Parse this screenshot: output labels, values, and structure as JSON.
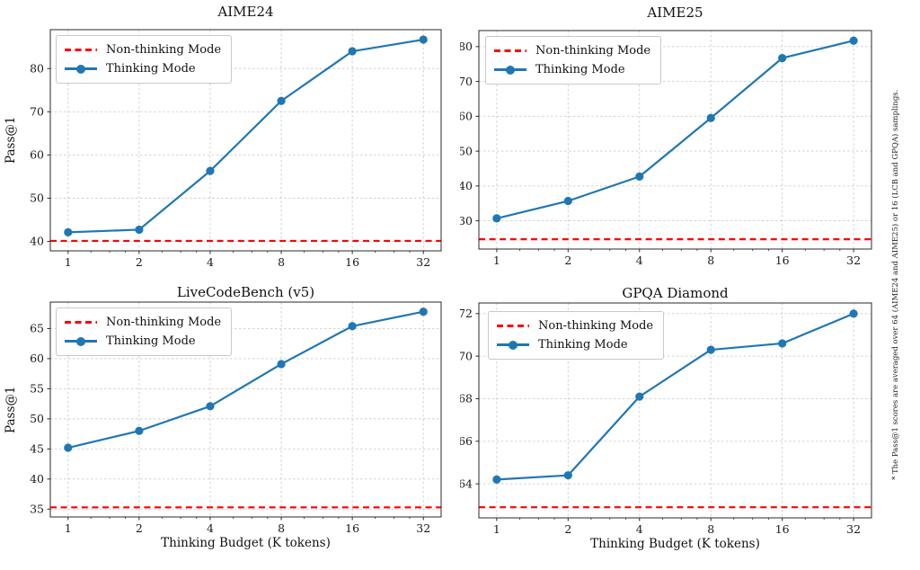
{
  "figure": {
    "footnote": "* The Pass@1 scores are averaged over 64 (AIME24 and AIME25) or 16 (LCB and GPQA) samplings.",
    "shared_xlabel": "Thinking Budget (K tokens)",
    "shared_ylabel": "Pass@1"
  },
  "legend": {
    "non_thinking": "Non-thinking Mode",
    "thinking": "Thinking Mode"
  },
  "colors": {
    "thinking": "#1f77b4",
    "non_thinking": "#ff0000",
    "grid": "#cdcdcd",
    "spine": "#2a2a2a",
    "text": "#1a1a1a"
  },
  "chart_data": [
    {
      "type": "line",
      "title": "AIME24",
      "ylabel": "Pass@1",
      "x_scale": "log2",
      "x": [
        1,
        2,
        4,
        8,
        16,
        32
      ],
      "x_tick_labels": [
        "1",
        "2",
        "4",
        "8",
        "16",
        "32"
      ],
      "yticks": [
        40,
        50,
        60,
        70,
        80
      ],
      "ylim": [
        37.8,
        89.0
      ],
      "xlim_log2": [
        -0.25,
        5.25
      ],
      "grid": true,
      "legend_position": "upper left",
      "series": [
        {
          "name": "Thinking Mode",
          "type": "line",
          "values": [
            42.1,
            42.7,
            56.3,
            72.5,
            84.0,
            86.7
          ]
        },
        {
          "name": "Non-thinking Mode",
          "type": "hline",
          "value": 40.1
        }
      ]
    },
    {
      "type": "line",
      "title": "AIME25",
      "x_scale": "log2",
      "x": [
        1,
        2,
        4,
        8,
        16,
        32
      ],
      "x_tick_labels": [
        "1",
        "2",
        "4",
        "8",
        "16",
        "32"
      ],
      "yticks": [
        30,
        40,
        50,
        60,
        70,
        80
      ],
      "ylim": [
        21.9,
        84.6
      ],
      "xlim_log2": [
        -0.25,
        5.25
      ],
      "grid": true,
      "legend_position": "upper left",
      "series": [
        {
          "name": "Thinking Mode",
          "type": "line",
          "values": [
            30.7,
            35.7,
            42.7,
            59.5,
            76.7,
            81.7
          ]
        },
        {
          "name": "Non-thinking Mode",
          "type": "hline",
          "value": 24.7
        }
      ]
    },
    {
      "type": "line",
      "title": "LiveCodeBench (v5)",
      "ylabel": "Pass@1",
      "xlabel": "Thinking Budget (K tokens)",
      "x_scale": "log2",
      "x": [
        1,
        2,
        4,
        8,
        16,
        32
      ],
      "x_tick_labels": [
        "1",
        "2",
        "4",
        "8",
        "16",
        "32"
      ],
      "yticks": [
        35,
        40,
        45,
        50,
        55,
        60,
        65
      ],
      "ylim": [
        33.7,
        69.4
      ],
      "xlim_log2": [
        -0.25,
        5.25
      ],
      "grid": true,
      "legend_position": "upper left",
      "series": [
        {
          "name": "Thinking Mode",
          "type": "line",
          "values": [
            45.2,
            48.0,
            52.1,
            59.1,
            65.4,
            67.8
          ]
        },
        {
          "name": "Non-thinking Mode",
          "type": "hline",
          "value": 35.3
        }
      ]
    },
    {
      "type": "line",
      "title": "GPQA Diamond",
      "xlabel": "Thinking Budget (K tokens)",
      "x_scale": "log2",
      "x": [
        1,
        2,
        4,
        8,
        16,
        32
      ],
      "x_tick_labels": [
        "1",
        "2",
        "4",
        "8",
        "16",
        "32"
      ],
      "yticks": [
        64,
        66,
        68,
        70,
        72
      ],
      "ylim": [
        62.4,
        72.5
      ],
      "xlim_log2": [
        -0.25,
        5.25
      ],
      "grid": true,
      "legend_position": "upper left",
      "series": [
        {
          "name": "Thinking Mode",
          "type": "line",
          "values": [
            64.2,
            64.4,
            68.1,
            70.3,
            70.6,
            72.0
          ]
        },
        {
          "name": "Non-thinking Mode",
          "type": "hline",
          "value": 62.9
        }
      ]
    }
  ]
}
